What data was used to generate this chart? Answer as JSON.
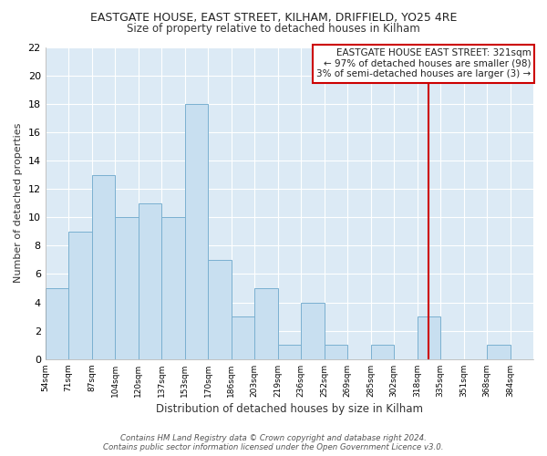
{
  "title": "EASTGATE HOUSE, EAST STREET, KILHAM, DRIFFIELD, YO25 4RE",
  "subtitle": "Size of property relative to detached houses in Kilham",
  "xlabel": "Distribution of detached houses by size in Kilham",
  "ylabel": "Number of detached properties",
  "bin_labels": [
    "54sqm",
    "71sqm",
    "87sqm",
    "104sqm",
    "120sqm",
    "137sqm",
    "153sqm",
    "170sqm",
    "186sqm",
    "203sqm",
    "219sqm",
    "236sqm",
    "252sqm",
    "269sqm",
    "285sqm",
    "302sqm",
    "318sqm",
    "335sqm",
    "351sqm",
    "368sqm",
    "384sqm"
  ],
  "bar_heights": [
    5,
    9,
    13,
    10,
    11,
    10,
    18,
    7,
    3,
    5,
    1,
    4,
    1,
    0,
    1,
    0,
    3,
    0,
    0,
    1,
    0
  ],
  "bar_color": "#c8dff0",
  "bar_edge_color": "#7ab0d0",
  "vline_color": "#cc0000",
  "annotation_title": "EASTGATE HOUSE EAST STREET: 321sqm",
  "annotation_line1": "← 97% of detached houses are smaller (98)",
  "annotation_line2": "3% of semi-detached houses are larger (3) →",
  "annotation_box_color": "#ffffff",
  "annotation_border_color": "#cc0000",
  "ylim": [
    0,
    22
  ],
  "yticks": [
    0,
    2,
    4,
    6,
    8,
    10,
    12,
    14,
    16,
    18,
    20,
    22
  ],
  "footer1": "Contains HM Land Registry data © Crown copyright and database right 2024.",
  "footer2": "Contains public sector information licensed under the Open Government Licence v3.0.",
  "plot_bg_color": "#dceaf5",
  "fig_bg_color": "#ffffff",
  "grid_color": "#ffffff"
}
